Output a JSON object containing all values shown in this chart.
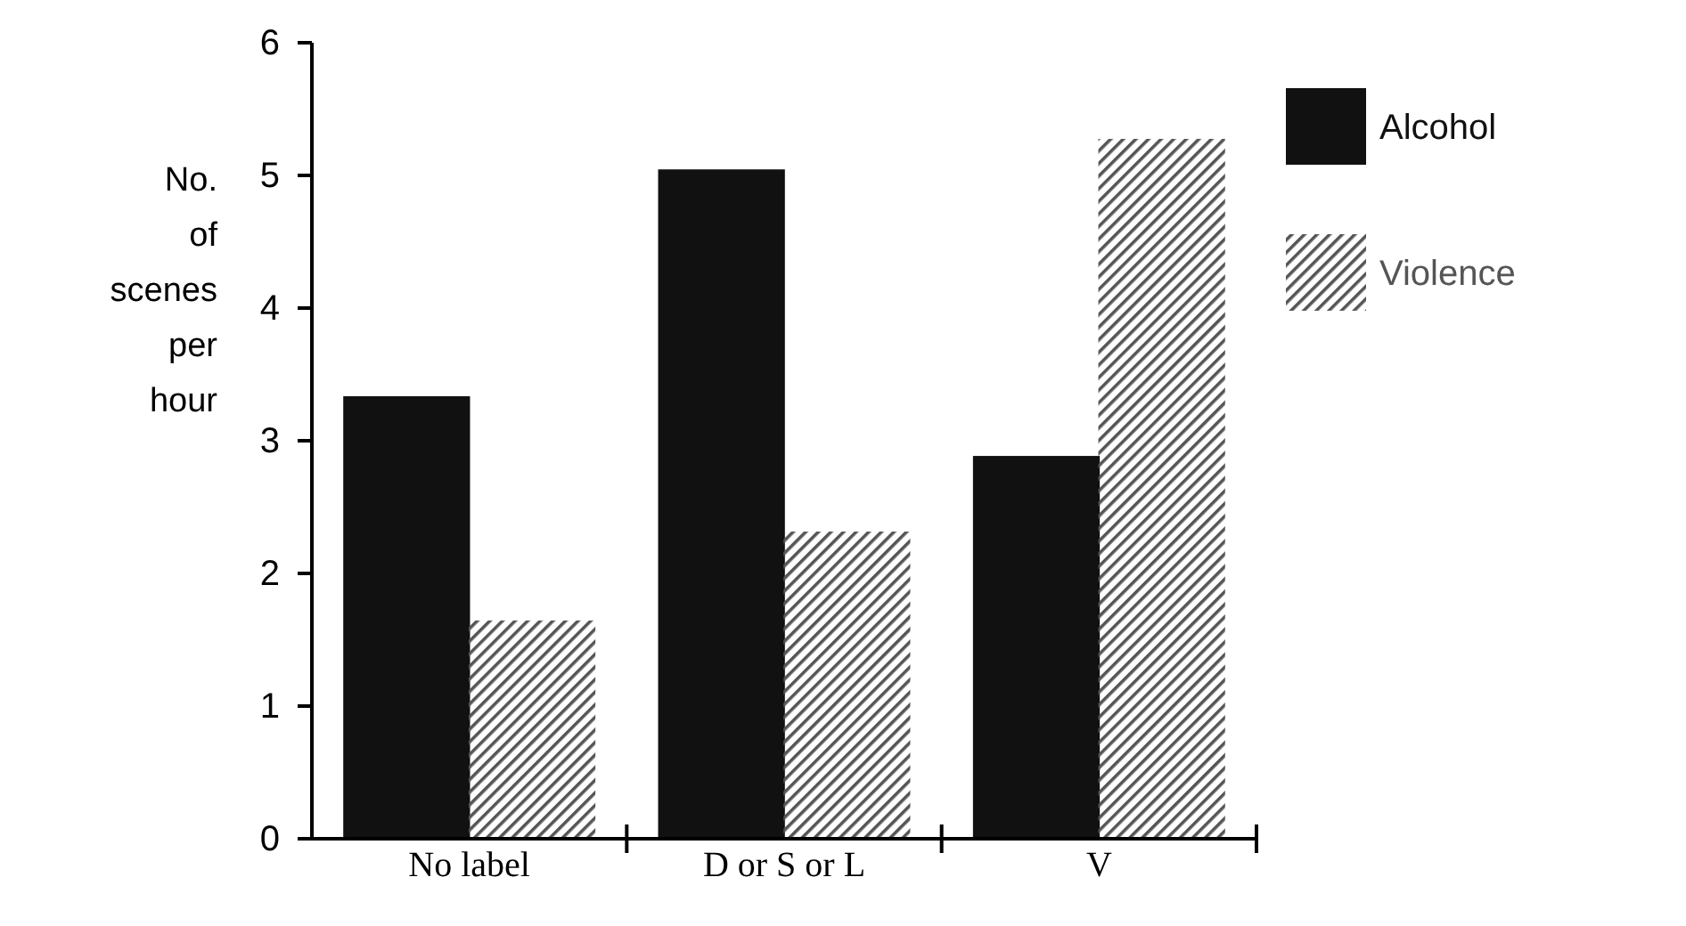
{
  "chart_data": {
    "type": "bar",
    "ylabel": "No. of scenes per hour",
    "categories": [
      "No label",
      "D or S or L",
      "V"
    ],
    "series": [
      {
        "name": "Alcohol",
        "color": "#111111",
        "values": [
          3.33,
          5.04,
          2.88
        ]
      },
      {
        "name": "Violence",
        "color": "#555555",
        "values": [
          1.64,
          2.31,
          5.27
        ]
      }
    ],
    "ylim": [
      0,
      6
    ],
    "yticks": [
      0,
      1,
      2,
      3,
      4,
      5,
      6
    ],
    "grid": false,
    "legend": "right"
  }
}
